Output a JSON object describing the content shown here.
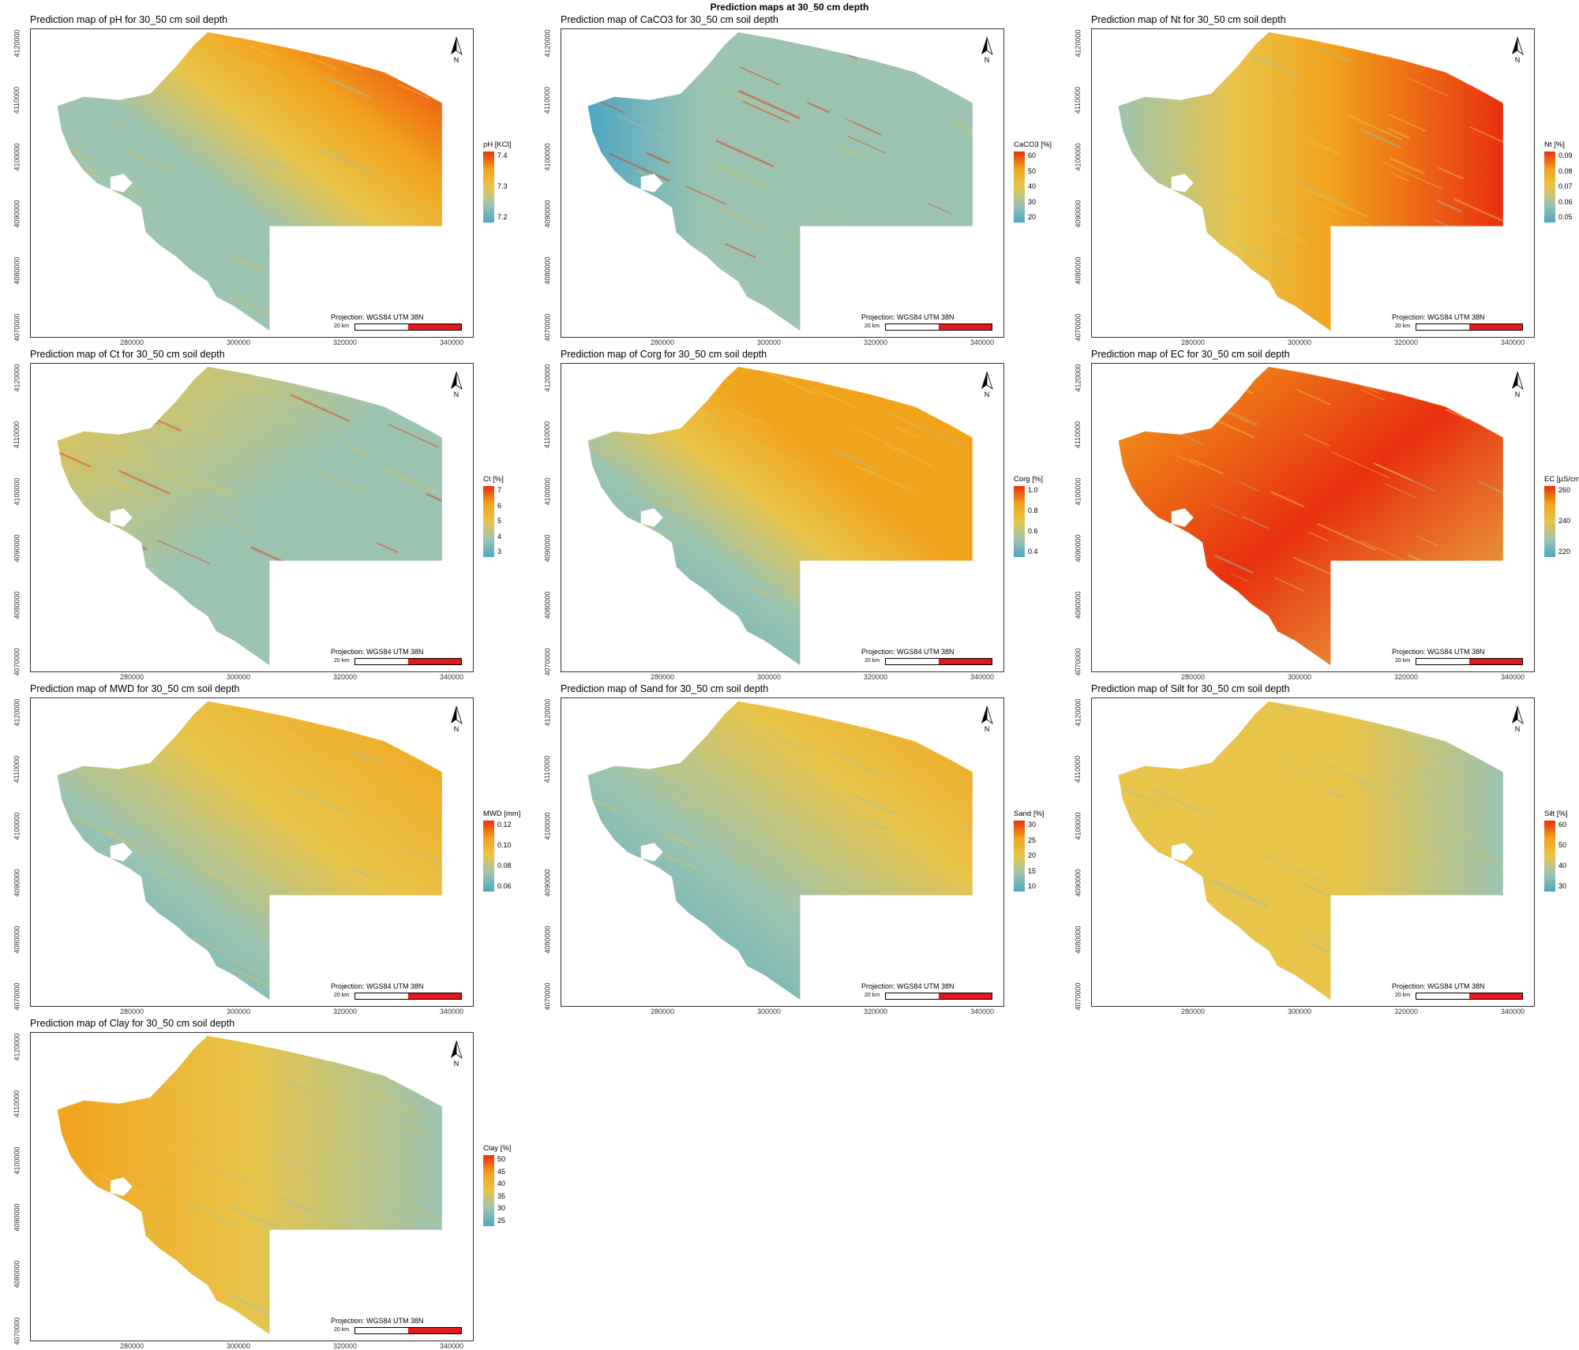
{
  "main_title": "Prediction maps at 30_50 cm depth",
  "projection_label": "Projection: WGS84 UTM 38N",
  "scale_label": "20 km",
  "north_label": "N",
  "y_ticks": [
    "4070000",
    "4080000",
    "4090000",
    "4100000",
    "4110000",
    "4120000"
  ],
  "x_ticks": [
    "280000",
    "300000",
    "320000",
    "340000"
  ],
  "colors": {
    "low": "#4ea6c4",
    "mid_low": "#9cc4b0",
    "mid": "#e8c44a",
    "mid_high": "#f2a31c",
    "high": "#e8300f"
  },
  "panels": [
    {
      "title": "Prediction map of pH for 30_50 cm soil depth",
      "legend_title": "pH [KCl]",
      "legend_ticks": [
        "7.4",
        "7.3",
        "7.2"
      ],
      "pattern": "north-high"
    },
    {
      "title": "Prediction map of CaCO3 for 30_50 cm soil depth",
      "legend_title": "CaCO3 [%]",
      "legend_ticks": [
        "60",
        "50",
        "40",
        "30",
        "20"
      ],
      "pattern": "low-with-streaks"
    },
    {
      "title": "Prediction map of Nt for 30_50 cm soil depth",
      "legend_title": "Nt [%]",
      "legend_ticks": [
        "0.09",
        "0.08",
        "0.07",
        "0.06",
        "0.05"
      ],
      "pattern": "east-high"
    },
    {
      "title": "Prediction map of Ct for 30_50 cm soil depth",
      "legend_title": "Ct [%]",
      "legend_ticks": [
        "7",
        "6",
        "5",
        "4",
        "3"
      ],
      "pattern": "mixed-streaks"
    },
    {
      "title": "Prediction map of Corg for 30_50 cm soil depth",
      "legend_title": "Corg [%]",
      "legend_ticks": [
        "1.0",
        "0.8",
        "0.6",
        "0.4"
      ],
      "pattern": "east-orange"
    },
    {
      "title": "Prediction map of EC for 30_50 cm soil depth",
      "legend_title": "EC [µS/cm]",
      "legend_ticks": [
        "260",
        "240",
        "220"
      ],
      "pattern": "all-high"
    },
    {
      "title": "Prediction map of MWD for 30_50 cm soil depth",
      "legend_title": "MWD [mm]",
      "legend_ticks": [
        "0.12",
        "0.10",
        "0.08",
        "0.06"
      ],
      "pattern": "band-mid"
    },
    {
      "title": "Prediction map of Sand for 30_50 cm soil depth",
      "legend_title": "Sand [%]",
      "legend_ticks": [
        "30",
        "25",
        "20",
        "15",
        "10"
      ],
      "pattern": "southwest-low"
    },
    {
      "title": "Prediction map of Silt for 30_50 cm soil depth",
      "legend_title": "Silt [%]",
      "legend_ticks": [
        "60",
        "50",
        "40",
        "30"
      ],
      "pattern": "mostly-mid"
    },
    {
      "title": "Prediction map of Clay for 30_50 cm soil depth",
      "legend_title": "Clay [%]",
      "legend_ticks": [
        "50",
        "45",
        "40",
        "35",
        "30",
        "25"
      ],
      "pattern": "west-orange"
    }
  ]
}
